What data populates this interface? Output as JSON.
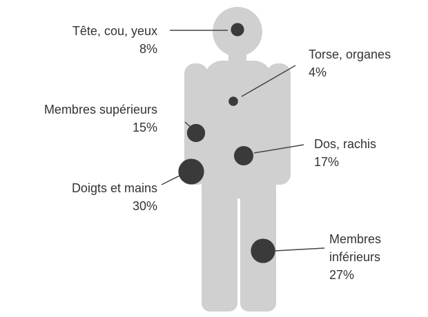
{
  "chart_data": {
    "type": "bubble",
    "categories": [
      "Tête, cou, yeux",
      "Torse, organes",
      "Membres supérieurs",
      "Dos, rachis",
      "Doigts et mains",
      "Membres inférieurs"
    ],
    "values": [
      8,
      4,
      15,
      17,
      30,
      27
    ],
    "value_labels": [
      "8%",
      "4%",
      "15%",
      "17%",
      "30%",
      "27%"
    ],
    "color": "#3a3a3a"
  }
}
